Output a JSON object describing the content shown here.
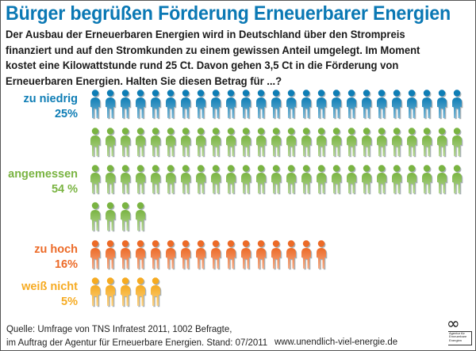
{
  "header": {
    "title": "Bürger begrüßen Förderung Erneuerbarer Energien",
    "intro": "Der Ausbau der Erneuerbaren Energien wird in Deutschland über den Strompreis finanziert und auf den Stromkunden zu einem gewissen Anteil umgelegt. Im Moment kostet eine Kilowattstunde rund 25 Ct. Davon gehen 3,5 Ct in die Förderung von Erneuerbaren Energien. Halten Sie diesen Betrag für ...?"
  },
  "chart_data": {
    "type": "bar",
    "subtype": "pictogram",
    "title": "Bürger begrüßen Förderung Erneuerbarer Energien",
    "unit_per_icon": "1 %",
    "icons_per_row": 25,
    "categories": [
      "zu niedrig",
      "angemessen",
      "zu hoch",
      "weiß nicht"
    ],
    "values": [
      25,
      54,
      16,
      5
    ],
    "value_labels": [
      "25%",
      "54 %",
      "16%",
      "5%"
    ],
    "colors": [
      "#0e7db5",
      "#7ab442",
      "#ec6a27",
      "#f6ab22"
    ],
    "xlabel": "",
    "ylabel": ""
  },
  "footer": {
    "source_line1": "Quelle: Umfrage von TNS Infratest 2011, 1002 Befragte,",
    "source_line2": "im Auftrag der Agentur für Erneuerbare Energien. Stand: 07/2011",
    "url": "www.unendlich-viel-energie.de",
    "logo_symbol": "∞",
    "logo_text": [
      "Agentur für",
      "Erneuerbare",
      "Energien"
    ]
  }
}
